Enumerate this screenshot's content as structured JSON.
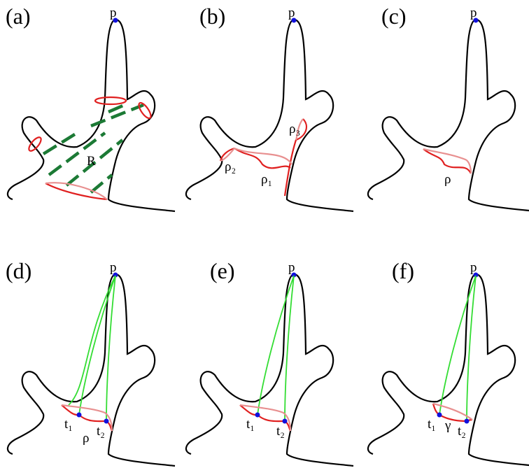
{
  "panels": [
    {
      "label": "(a)",
      "point": "p",
      "annotations": [
        "R"
      ]
    },
    {
      "label": "(b)",
      "point": "p",
      "annotations": [
        "ρ₃",
        "ρ₂",
        "ρ₁"
      ]
    },
    {
      "label": "(c)",
      "point": "p",
      "annotations": [
        "ρ"
      ]
    },
    {
      "label": "(d)",
      "point": "p",
      "annotations": [
        "t₁",
        "ρ",
        "t₂"
      ]
    },
    {
      "label": "(e)",
      "point": "p",
      "annotations": [
        "t₁",
        "t₂"
      ]
    },
    {
      "label": "(f)",
      "point": "p",
      "annotations": [
        "t₁",
        "γ",
        "t₂"
      ]
    }
  ]
}
